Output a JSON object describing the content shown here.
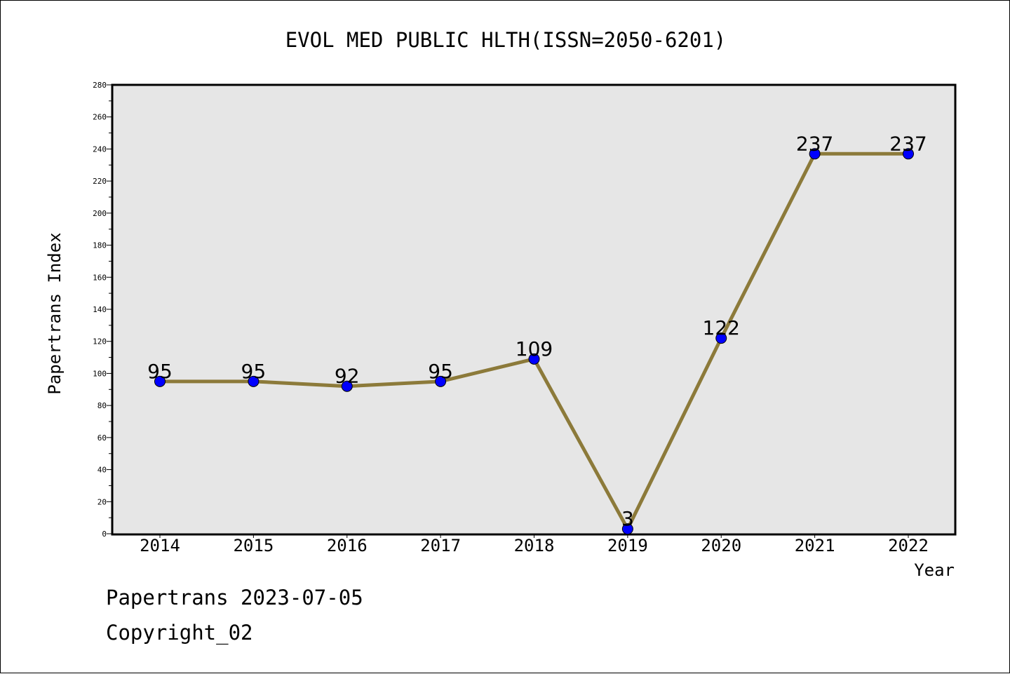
{
  "chart_data": {
    "type": "line",
    "title": "EVOL MED PUBLIC HLTH(ISSN=2050-6201)",
    "xlabel": "Year",
    "ylabel": "Papertrans Index",
    "categories": [
      "2014",
      "2015",
      "2016",
      "2017",
      "2018",
      "2019",
      "2020",
      "2021",
      "2022"
    ],
    "values": [
      95,
      95,
      92,
      95,
      109,
      3,
      122,
      237,
      237
    ],
    "data_labels": [
      "95",
      "95",
      "92",
      "95",
      "109",
      "3",
      "122",
      "237",
      "237"
    ],
    "ylim": [
      0,
      280
    ],
    "yticks": [
      0,
      20,
      40,
      60,
      80,
      100,
      120,
      140,
      160,
      180,
      200,
      220,
      240,
      260,
      280
    ],
    "ytick_labels": [
      "0",
      "20",
      "40",
      "60",
      "80",
      "100",
      "120",
      "140",
      "160",
      "180",
      "200",
      "220",
      "240",
      "260",
      "280"
    ],
    "grid": false,
    "colors": {
      "line": "#8c7a3a",
      "marker": "#0000ff",
      "plot_background": "#e6e6e6",
      "axis": "#000000"
    }
  },
  "footer": {
    "line1": "Papertrans 2023-07-05",
    "line2": "Copyright_02"
  }
}
